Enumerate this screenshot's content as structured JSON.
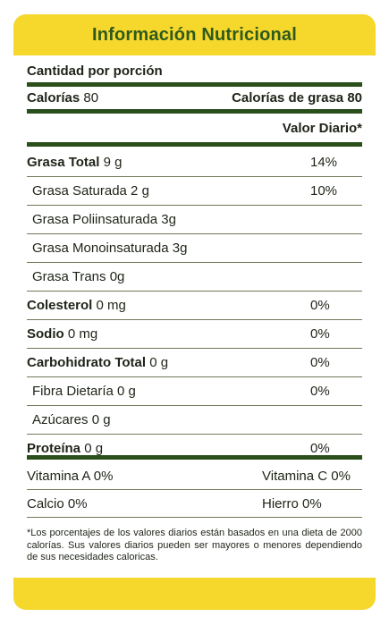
{
  "title": "Información Nutricional",
  "serving": "Cantidad por porción",
  "calories": {
    "label": "Calorías",
    "value": "80",
    "fat_label": "Calorías de grasa",
    "fat_value": "80"
  },
  "dv_header": "Valor Diario*",
  "nutrients": [
    {
      "label": "Grasa Total",
      "amount": "9 g",
      "pct": "14%"
    },
    {
      "label": "Grasa Saturada 2 g",
      "pct": "10%"
    },
    {
      "label": "Grasa Poliinsaturada 3g"
    },
    {
      "label": "Grasa Monoinsaturada  3g"
    },
    {
      "label": "Grasa Trans 0g"
    },
    {
      "label": "Colesterol",
      "amount": "0 mg",
      "pct": "0%"
    },
    {
      "label": "Sodio",
      "amount": "0 mg",
      "pct": "0%"
    },
    {
      "label": "Carbohidrato Total",
      "amount": "0 g",
      "pct": "0%"
    },
    {
      "label": "Fibra Dietaría 0 g",
      "pct": "0%"
    },
    {
      "label": "Azúcares 0 g"
    },
    {
      "label": "Proteína",
      "amount": "0 g",
      "pct": "0%"
    }
  ],
  "vitamins": [
    {
      "left": "Vitamina A 0%",
      "right": "Vitamina C 0%"
    },
    {
      "left": "Calcio 0%",
      "right": "Hierro 0%"
    }
  ],
  "footnote": "*Los porcentajes de los valores diarios están basados en una dieta de 2000 calorías. Sus valores diarios  pueden ser mayores o menores dependiendo de sus necesidades caloricas.",
  "colors": {
    "accent_yellow": "#f6d72c",
    "title_green": "#2e5a1c",
    "rule_green": "#2a4f1a"
  }
}
